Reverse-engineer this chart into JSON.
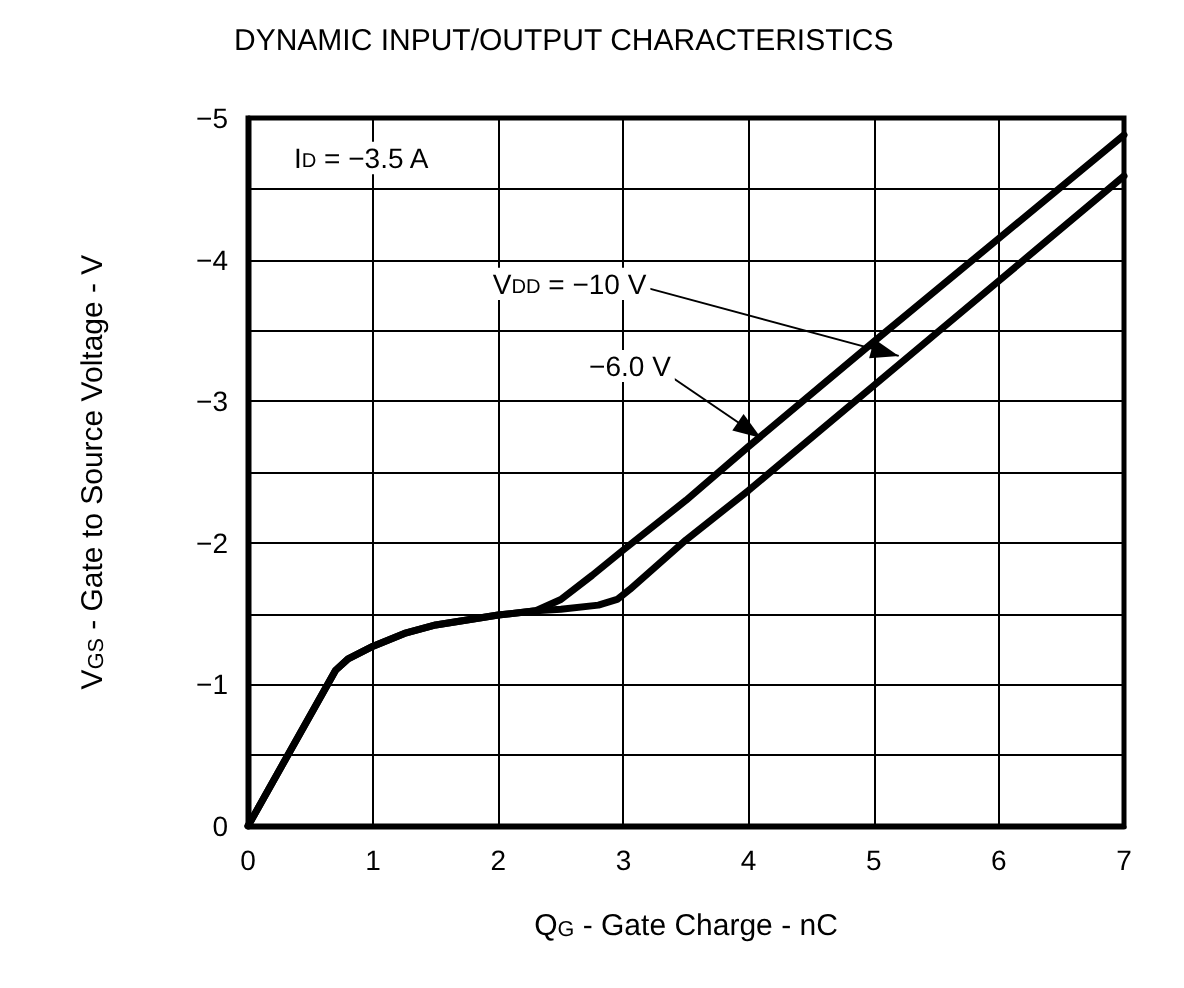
{
  "chart_data": {
    "type": "line",
    "title": "DYNAMIC INPUT/OUTPUT CHARACTERISTICS",
    "xlabel": "Q$_{G}$ - Gate Charge - nC",
    "ylabel": "V$_{GS}$ - Gate to Source Voltage - V",
    "xlim": [
      0,
      7
    ],
    "xticks": [
      0,
      1,
      2,
      3,
      4,
      5,
      6,
      7
    ],
    "ylim": [
      0,
      -5
    ],
    "yticks": [
      {
        "value": 0,
        "label": "0"
      },
      {
        "value": -0.5,
        "label": null
      },
      {
        "value": -1,
        "label": "−1"
      },
      {
        "value": -1.5,
        "label": null
      },
      {
        "value": -2,
        "label": "−2"
      },
      {
        "value": -2.5,
        "label": null
      },
      {
        "value": -3,
        "label": "−3"
      },
      {
        "value": -3.5,
        "label": null
      },
      {
        "value": -4,
        "label": "−4"
      },
      {
        "value": -4.5,
        "label": null
      },
      {
        "value": -5,
        "label": "−5"
      }
    ],
    "grid": true,
    "marker": "none",
    "line_style": "solid",
    "series": [
      {
        "color": "#000000",
        "x": [
          0,
          0.7,
          0.8,
          1,
          1.25,
          1.5,
          2,
          2.3,
          2.5,
          2.75,
          3,
          3.5,
          4,
          5,
          6,
          7
        ],
        "values": [
          0,
          -1.1,
          -1.18,
          -1.27,
          -1.36,
          -1.42,
          -1.49,
          -1.52,
          -1.6,
          -1.77,
          -1.95,
          -2.3,
          -2.68,
          -3.42,
          -4.15,
          -4.88
        ]
      },
      {
        "color": "#000000",
        "x": [
          0,
          0.7,
          0.8,
          1,
          1.25,
          1.5,
          2,
          2.3,
          2.5,
          2.8,
          2.95,
          3.05,
          3.5,
          4,
          5,
          6,
          7
        ],
        "values": [
          0,
          -1.1,
          -1.18,
          -1.27,
          -1.36,
          -1.42,
          -1.49,
          -1.52,
          -1.53,
          -1.56,
          -1.6,
          -1.67,
          -2.02,
          -2.37,
          -3.11,
          -3.85,
          -4.59
        ]
      }
    ],
    "annotations": [
      "I$_{D}$ = −3.5 A",
      {
        "text": "V$_{DD}$ = −10 V",
        "x": 5.2,
        "y": -3.32
      },
      {
        "text": "−6.0 V",
        "x": 4.1,
        "y": -2.74
      }
    ]
  }
}
